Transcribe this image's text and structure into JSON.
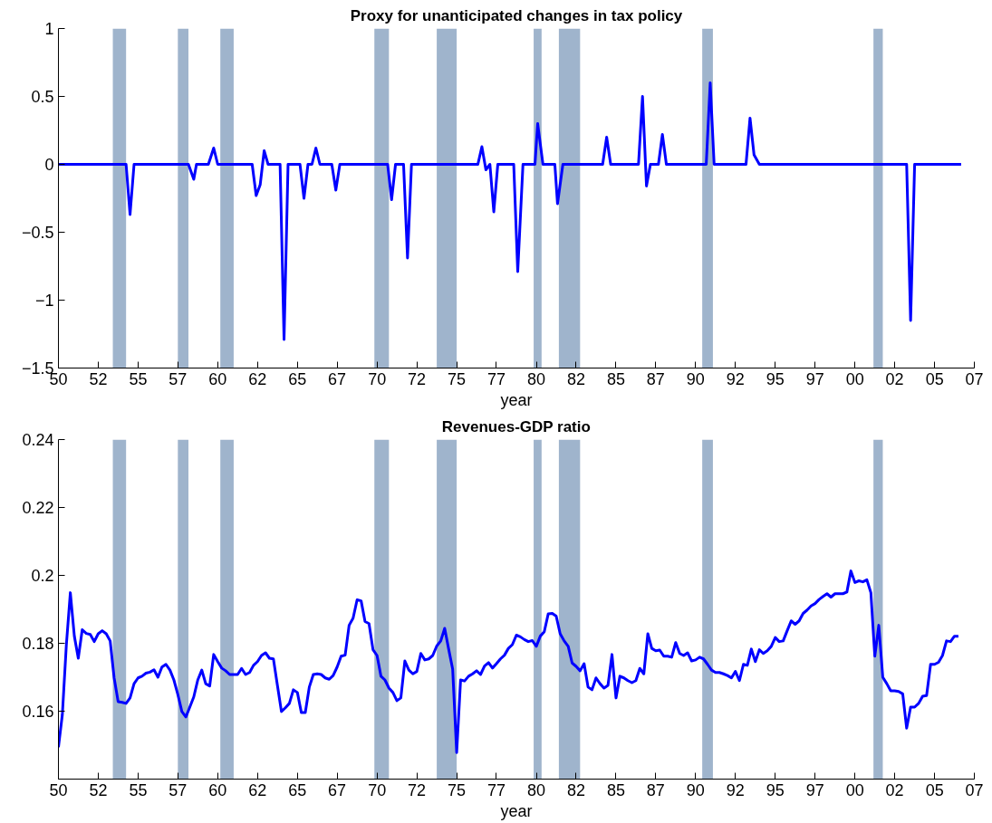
{
  "chart_data": [
    {
      "type": "line",
      "title": "Proxy for unanticipated changes in tax policy",
      "xlabel": "year",
      "color": "#0000ff",
      "x": [
        "1950-01",
        "1954-04",
        "1954-07",
        "1954-10",
        "1958-03",
        "1958-07",
        "1958-09",
        "1959-06",
        "1959-10",
        "1960-01",
        "1962-03",
        "1962-06",
        "1962-09",
        "1962-12",
        "1963-03",
        "1963-12",
        "1964-03",
        "1964-06",
        "1965-03",
        "1965-06",
        "1965-09",
        "1965-12",
        "1966-03",
        "1966-06",
        "1967-03",
        "1967-06",
        "1967-09",
        "1970-09",
        "1970-12",
        "1971-03",
        "1971-09",
        "1971-12",
        "1972-03",
        "1976-05",
        "1976-08",
        "1976-11",
        "1977-02",
        "1977-05",
        "1977-08",
        "1978-08",
        "1978-11",
        "1979-03",
        "1979-12",
        "1980-02",
        "1980-06",
        "1981-03",
        "1981-05",
        "1981-09",
        "1984-03",
        "1984-06",
        "1984-09",
        "1986-06",
        "1986-09",
        "1986-12",
        "1987-03",
        "1987-09",
        "1987-12",
        "1988-03",
        "1990-09",
        "1990-12",
        "1991-03",
        "1993-03",
        "1993-06",
        "1993-09",
        "1994-01",
        "2003-04",
        "2003-07",
        "2003-10",
        "2006-09"
      ],
      "values": [
        0,
        0,
        -0.37,
        0,
        0,
        -0.11,
        0,
        0,
        0.12,
        0,
        0,
        -0.23,
        -0.15,
        0.1,
        0,
        0,
        -1.29,
        0,
        0,
        -0.25,
        0,
        0,
        0.12,
        0,
        0,
        -0.19,
        0,
        0,
        -0.26,
        0,
        0,
        -0.69,
        0,
        0,
        0.13,
        -0.04,
        0,
        -0.35,
        0,
        0,
        -0.79,
        0,
        0,
        0.3,
        0,
        0,
        -0.29,
        0,
        0,
        0.2,
        0,
        0,
        0.5,
        -0.16,
        0,
        0,
        0.22,
        0,
        0,
        0.6,
        0,
        0,
        0.34,
        0.07,
        0,
        0,
        -1.15,
        0,
        0
      ],
      "xlim": [
        "1950-01",
        "2007-07"
      ],
      "xticks": [
        {
          "value": "1950-01",
          "label": "50"
        },
        {
          "value": "1952-07",
          "label": "52"
        },
        {
          "value": "1955-01",
          "label": "55"
        },
        {
          "value": "1957-07",
          "label": "57"
        },
        {
          "value": "1960-01",
          "label": "60"
        },
        {
          "value": "1962-07",
          "label": "62"
        },
        {
          "value": "1965-01",
          "label": "65"
        },
        {
          "value": "1967-07",
          "label": "67"
        },
        {
          "value": "1970-01",
          "label": "70"
        },
        {
          "value": "1972-07",
          "label": "72"
        },
        {
          "value": "1975-01",
          "label": "75"
        },
        {
          "value": "1977-07",
          "label": "77"
        },
        {
          "value": "1980-01",
          "label": "80"
        },
        {
          "value": "1982-07",
          "label": "82"
        },
        {
          "value": "1985-01",
          "label": "85"
        },
        {
          "value": "1987-07",
          "label": "87"
        },
        {
          "value": "1990-01",
          "label": "90"
        },
        {
          "value": "1992-07",
          "label": "92"
        },
        {
          "value": "1995-01",
          "label": "95"
        },
        {
          "value": "1997-07",
          "label": "97"
        },
        {
          "value": "2000-01",
          "label": "00"
        },
        {
          "value": "2002-07",
          "label": "02"
        },
        {
          "value": "2005-01",
          "label": "05"
        },
        {
          "value": "2007-07",
          "label": "07"
        }
      ],
      "ylim": [
        -1.5,
        1
      ],
      "yticks": [
        {
          "value": -1.5,
          "label": "−1.5"
        },
        {
          "value": -1,
          "label": "−1"
        },
        {
          "value": -0.5,
          "label": "−0.5"
        },
        0,
        0.5,
        1
      ],
      "bands": [
        {
          "axis": "x",
          "from": "1953-06",
          "to": "1954-04",
          "color": "#9fb4cc"
        },
        {
          "axis": "x",
          "from": "1957-07",
          "to": "1958-03",
          "color": "#9fb4cc"
        },
        {
          "axis": "x",
          "from": "1960-03",
          "to": "1961-01",
          "color": "#9fb4cc"
        },
        {
          "axis": "x",
          "from": "1969-11",
          "to": "1970-10",
          "color": "#9fb4cc"
        },
        {
          "axis": "x",
          "from": "1973-10",
          "to": "1975-01",
          "color": "#9fb4cc"
        },
        {
          "axis": "x",
          "from": "1979-11",
          "to": "1980-05",
          "color": "#9fb4cc"
        },
        {
          "axis": "x",
          "from": "1981-06",
          "to": "1982-10",
          "color": "#9fb4cc"
        },
        {
          "axis": "x",
          "from": "1990-06",
          "to": "1991-02",
          "color": "#9fb4cc"
        },
        {
          "axis": "x",
          "from": "2001-03",
          "to": "2001-10",
          "color": "#9fb4cc"
        }
      ]
    },
    {
      "type": "line",
      "title": "Revenues-GDP ratio",
      "xlabel": "year",
      "color": "#0000ff",
      "x": [
        "1950-01",
        "1950-04",
        "1950-07",
        "1950-10",
        "1951-01",
        "1951-04",
        "1951-07",
        "1951-10",
        "1952-01",
        "1952-04",
        "1952-07",
        "1952-10",
        "1953-01",
        "1953-04",
        "1953-07",
        "1953-10",
        "1954-01",
        "1954-04",
        "1954-07",
        "1954-10",
        "1955-01",
        "1955-04",
        "1955-07",
        "1955-10",
        "1956-01",
        "1956-04",
        "1956-07",
        "1956-10",
        "1957-01",
        "1957-04",
        "1957-07",
        "1957-10",
        "1958-01",
        "1958-04",
        "1958-07",
        "1958-10",
        "1959-01",
        "1959-04",
        "1959-07",
        "1959-10",
        "1960-01",
        "1960-04",
        "1960-07",
        "1960-10",
        "1961-01",
        "1961-04",
        "1961-07",
        "1961-10",
        "1962-01",
        "1962-04",
        "1962-07",
        "1962-10",
        "1963-01",
        "1963-04",
        "1963-07",
        "1963-10",
        "1964-01",
        "1964-04",
        "1964-07",
        "1964-10",
        "1965-01",
        "1965-04",
        "1965-07",
        "1965-10",
        "1966-01",
        "1966-04",
        "1966-07",
        "1966-10",
        "1967-01",
        "1967-04",
        "1967-07",
        "1967-10",
        "1968-01",
        "1968-04",
        "1968-07",
        "1968-10",
        "1969-01",
        "1969-04",
        "1969-07",
        "1969-10",
        "1970-01",
        "1970-04",
        "1970-07",
        "1970-10",
        "1971-01",
        "1971-04",
        "1971-07",
        "1971-10",
        "1972-01",
        "1972-04",
        "1972-07",
        "1972-10",
        "1973-01",
        "1973-04",
        "1973-07",
        "1973-10",
        "1974-01",
        "1974-04",
        "1974-07",
        "1974-10",
        "1975-01",
        "1975-04",
        "1975-07",
        "1975-10",
        "1976-01",
        "1976-04",
        "1976-07",
        "1976-10",
        "1977-01",
        "1977-04",
        "1977-07",
        "1977-10",
        "1978-01",
        "1978-04",
        "1978-07",
        "1978-10",
        "1979-01",
        "1979-04",
        "1979-07",
        "1979-10",
        "1980-01",
        "1980-04",
        "1980-07",
        "1980-10",
        "1981-01",
        "1981-04",
        "1981-07",
        "1981-10",
        "1982-01",
        "1982-04",
        "1982-07",
        "1982-10",
        "1983-01",
        "1983-04",
        "1983-07",
        "1983-10",
        "1984-01",
        "1984-04",
        "1984-07",
        "1984-10",
        "1985-01",
        "1985-04",
        "1985-07",
        "1985-10",
        "1986-01",
        "1986-04",
        "1986-07",
        "1986-10",
        "1987-01",
        "1987-04",
        "1987-07",
        "1987-10",
        "1988-01",
        "1988-04",
        "1988-07",
        "1988-10",
        "1989-01",
        "1989-04",
        "1989-07",
        "1989-10",
        "1990-01",
        "1990-04",
        "1990-07",
        "1990-10",
        "1991-01",
        "1991-04",
        "1991-07",
        "1991-10",
        "1992-01",
        "1992-04",
        "1992-07",
        "1992-10",
        "1993-01",
        "1993-04",
        "1993-07",
        "1993-10",
        "1994-01",
        "1994-04",
        "1994-07",
        "1994-10",
        "1995-01",
        "1995-04",
        "1995-07",
        "1995-10",
        "1996-01",
        "1996-04",
        "1996-07",
        "1996-10",
        "1997-01",
        "1997-04",
        "1997-07",
        "1997-10",
        "1998-01",
        "1998-04",
        "1998-07",
        "1998-10",
        "1999-01",
        "1999-04",
        "1999-07",
        "1999-10",
        "2000-01",
        "2000-04",
        "2000-07",
        "2000-10",
        "2001-01",
        "2001-04",
        "2001-07",
        "2001-10",
        "2002-01",
        "2002-04",
        "2002-07",
        "2002-10",
        "2003-01",
        "2003-04",
        "2003-07",
        "2003-10",
        "2004-01",
        "2004-04",
        "2004-07",
        "2004-10",
        "2005-01",
        "2005-04",
        "2005-07",
        "2005-10",
        "2006-01",
        "2006-04",
        "2006-07"
      ],
      "values": [
        0.1494,
        0.159,
        0.1794,
        0.1949,
        0.1821,
        0.1756,
        0.184,
        0.1829,
        0.1826,
        0.1805,
        0.1828,
        0.1837,
        0.1828,
        0.1807,
        0.1698,
        0.1628,
        0.1626,
        0.1623,
        0.1639,
        0.1681,
        0.1698,
        0.1703,
        0.1712,
        0.1715,
        0.1722,
        0.17,
        0.173,
        0.1738,
        0.1721,
        0.1692,
        0.1649,
        0.1599,
        0.1583,
        0.1612,
        0.1642,
        0.1692,
        0.1721,
        0.1681,
        0.1674,
        0.1767,
        0.1746,
        0.1727,
        0.1719,
        0.1708,
        0.1708,
        0.1708,
        0.1726,
        0.1708,
        0.1714,
        0.1735,
        0.1746,
        0.1764,
        0.1772,
        0.1756,
        0.1754,
        0.1676,
        0.1599,
        0.161,
        0.1623,
        0.1663,
        0.1655,
        0.1596,
        0.1596,
        0.1671,
        0.1708,
        0.171,
        0.1708,
        0.1698,
        0.1694,
        0.1705,
        0.173,
        0.1762,
        0.1765,
        0.1853,
        0.1874,
        0.1928,
        0.1925,
        0.1864,
        0.1858,
        0.1781,
        0.1764,
        0.1703,
        0.1692,
        0.1668,
        0.1655,
        0.1631,
        0.1639,
        0.1748,
        0.1721,
        0.171,
        0.1717,
        0.177,
        0.1751,
        0.1754,
        0.1764,
        0.1792,
        0.1807,
        0.1844,
        0.1783,
        0.1724,
        0.1478,
        0.1692,
        0.1689,
        0.1703,
        0.171,
        0.1719,
        0.1708,
        0.1733,
        0.1743,
        0.1727,
        0.174,
        0.1754,
        0.1765,
        0.1785,
        0.1796,
        0.1824,
        0.1819,
        0.1811,
        0.1805,
        0.1808,
        0.1791,
        0.1821,
        0.1834,
        0.1887,
        0.1888,
        0.188,
        0.1828,
        0.1807,
        0.1791,
        0.1742,
        0.1732,
        0.1719,
        0.174,
        0.1671,
        0.1663,
        0.1698,
        0.1681,
        0.1668,
        0.1676,
        0.1767,
        0.1639,
        0.1703,
        0.1698,
        0.169,
        0.1684,
        0.169,
        0.1726,
        0.171,
        0.1828,
        0.1785,
        0.1778,
        0.178,
        0.1762,
        0.1762,
        0.1759,
        0.1802,
        0.177,
        0.1764,
        0.1772,
        0.1748,
        0.1751,
        0.1759,
        0.1754,
        0.1738,
        0.1721,
        0.1714,
        0.1714,
        0.171,
        0.1705,
        0.1698,
        0.1717,
        0.169,
        0.1738,
        0.1735,
        0.1783,
        0.1746,
        0.1781,
        0.177,
        0.1778,
        0.1791,
        0.1817,
        0.1805,
        0.1807,
        0.1837,
        0.1866,
        0.1856,
        0.1866,
        0.1888,
        0.1898,
        0.191,
        0.1917,
        0.1929,
        0.1938,
        0.1946,
        0.1936,
        0.1946,
        0.1946,
        0.1946,
        0.1951,
        0.2013,
        0.1979,
        0.1984,
        0.1981,
        0.1987,
        0.1949,
        0.1762,
        0.1853,
        0.17,
        0.1681,
        0.166,
        0.166,
        0.1658,
        0.1651,
        0.155,
        0.1612,
        0.1612,
        0.1623,
        0.1644,
        0.1646,
        0.1738,
        0.1738,
        0.1744,
        0.1764,
        0.1807,
        0.1805,
        0.1821,
        0.1821
      ],
      "xlim": [
        "1950-01",
        "2007-07"
      ],
      "xticks": [
        {
          "value": "1950-01",
          "label": "50"
        },
        {
          "value": "1952-07",
          "label": "52"
        },
        {
          "value": "1955-01",
          "label": "55"
        },
        {
          "value": "1957-07",
          "label": "57"
        },
        {
          "value": "1960-01",
          "label": "60"
        },
        {
          "value": "1962-07",
          "label": "62"
        },
        {
          "value": "1965-01",
          "label": "65"
        },
        {
          "value": "1967-07",
          "label": "67"
        },
        {
          "value": "1970-01",
          "label": "70"
        },
        {
          "value": "1972-07",
          "label": "72"
        },
        {
          "value": "1975-01",
          "label": "75"
        },
        {
          "value": "1977-07",
          "label": "77"
        },
        {
          "value": "1980-01",
          "label": "80"
        },
        {
          "value": "1982-07",
          "label": "82"
        },
        {
          "value": "1985-01",
          "label": "85"
        },
        {
          "value": "1987-07",
          "label": "87"
        },
        {
          "value": "1990-01",
          "label": "90"
        },
        {
          "value": "1992-07",
          "label": "92"
        },
        {
          "value": "1995-01",
          "label": "95"
        },
        {
          "value": "1997-07",
          "label": "97"
        },
        {
          "value": "2000-01",
          "label": "00"
        },
        {
          "value": "2002-07",
          "label": "02"
        },
        {
          "value": "2005-01",
          "label": "05"
        },
        {
          "value": "2007-07",
          "label": "07"
        }
      ],
      "ylim": [
        0.14,
        0.24
      ],
      "yticks": [
        {
          "value": 0.14,
          "label": null
        },
        0.16,
        0.18,
        {
          "value": 0.2,
          "label": "0.2"
        },
        0.22,
        0.24
      ],
      "bands": [
        {
          "axis": "x",
          "from": "1953-06",
          "to": "1954-04",
          "color": "#9fb4cc"
        },
        {
          "axis": "x",
          "from": "1957-07",
          "to": "1958-03",
          "color": "#9fb4cc"
        },
        {
          "axis": "x",
          "from": "1960-03",
          "to": "1961-01",
          "color": "#9fb4cc"
        },
        {
          "axis": "x",
          "from": "1969-11",
          "to": "1970-10",
          "color": "#9fb4cc"
        },
        {
          "axis": "x",
          "from": "1973-10",
          "to": "1975-01",
          "color": "#9fb4cc"
        },
        {
          "axis": "x",
          "from": "1979-11",
          "to": "1980-05",
          "color": "#9fb4cc"
        },
        {
          "axis": "x",
          "from": "1981-06",
          "to": "1982-10",
          "color": "#9fb4cc"
        },
        {
          "axis": "x",
          "from": "1990-06",
          "to": "1991-02",
          "color": "#9fb4cc"
        },
        {
          "axis": "x",
          "from": "2001-03",
          "to": "2001-10",
          "color": "#9fb4cc"
        }
      ]
    }
  ]
}
